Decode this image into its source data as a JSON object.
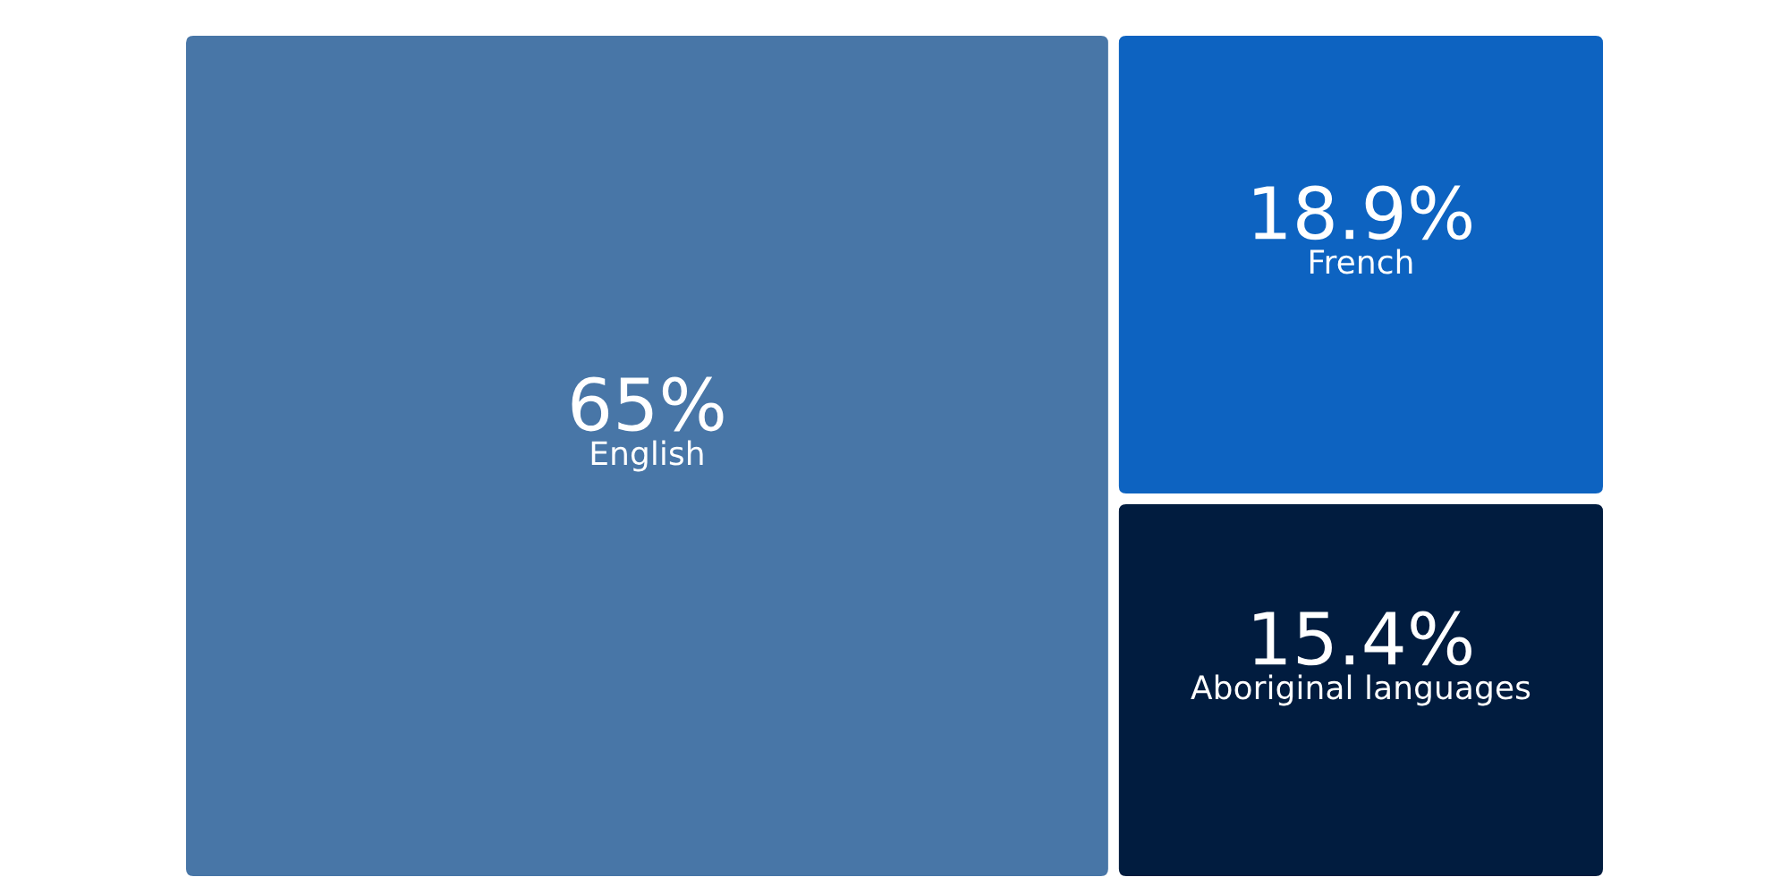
{
  "chart_data": {
    "type": "other",
    "categories": [
      "English",
      "French",
      "Aboriginal languages"
    ],
    "values": [
      65,
      18.9,
      15.4
    ],
    "value_labels": [
      "65%",
      "18.9%",
      "15.4%"
    ],
    "colors": [
      "#4876a7",
      "#0d63c1",
      "#011c3f"
    ]
  }
}
